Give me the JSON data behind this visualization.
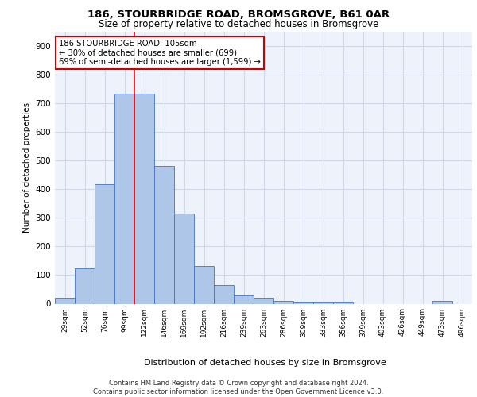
{
  "title1": "186, STOURBRIDGE ROAD, BROMSGROVE, B61 0AR",
  "title2": "Size of property relative to detached houses in Bromsgrove",
  "xlabel": "Distribution of detached houses by size in Bromsgrove",
  "ylabel": "Number of detached properties",
  "categories": [
    "29sqm",
    "52sqm",
    "76sqm",
    "99sqm",
    "122sqm",
    "146sqm",
    "169sqm",
    "192sqm",
    "216sqm",
    "239sqm",
    "263sqm",
    "286sqm",
    "309sqm",
    "333sqm",
    "356sqm",
    "379sqm",
    "403sqm",
    "426sqm",
    "449sqm",
    "473sqm",
    "496sqm"
  ],
  "values": [
    22,
    123,
    418,
    735,
    735,
    480,
    315,
    133,
    65,
    28,
    22,
    10,
    8,
    8,
    8,
    0,
    0,
    0,
    0,
    10,
    0
  ],
  "bar_color": "#aec6e8",
  "bar_edge_color": "#4472c4",
  "grid_color": "#d0d8e8",
  "background_color": "#eef2fa",
  "annotation_text": "186 STOURBRIDGE ROAD: 105sqm\n← 30% of detached houses are smaller (699)\n69% of semi-detached houses are larger (1,599) →",
  "annotation_box_color": "#ffffff",
  "annotation_box_edge": "#cc0000",
  "red_line_x": 3.5,
  "ylim": [
    0,
    950
  ],
  "yticks": [
    0,
    100,
    200,
    300,
    400,
    500,
    600,
    700,
    800,
    900
  ],
  "footer": "Contains HM Land Registry data © Crown copyright and database right 2024.\nContains public sector information licensed under the Open Government Licence v3.0."
}
